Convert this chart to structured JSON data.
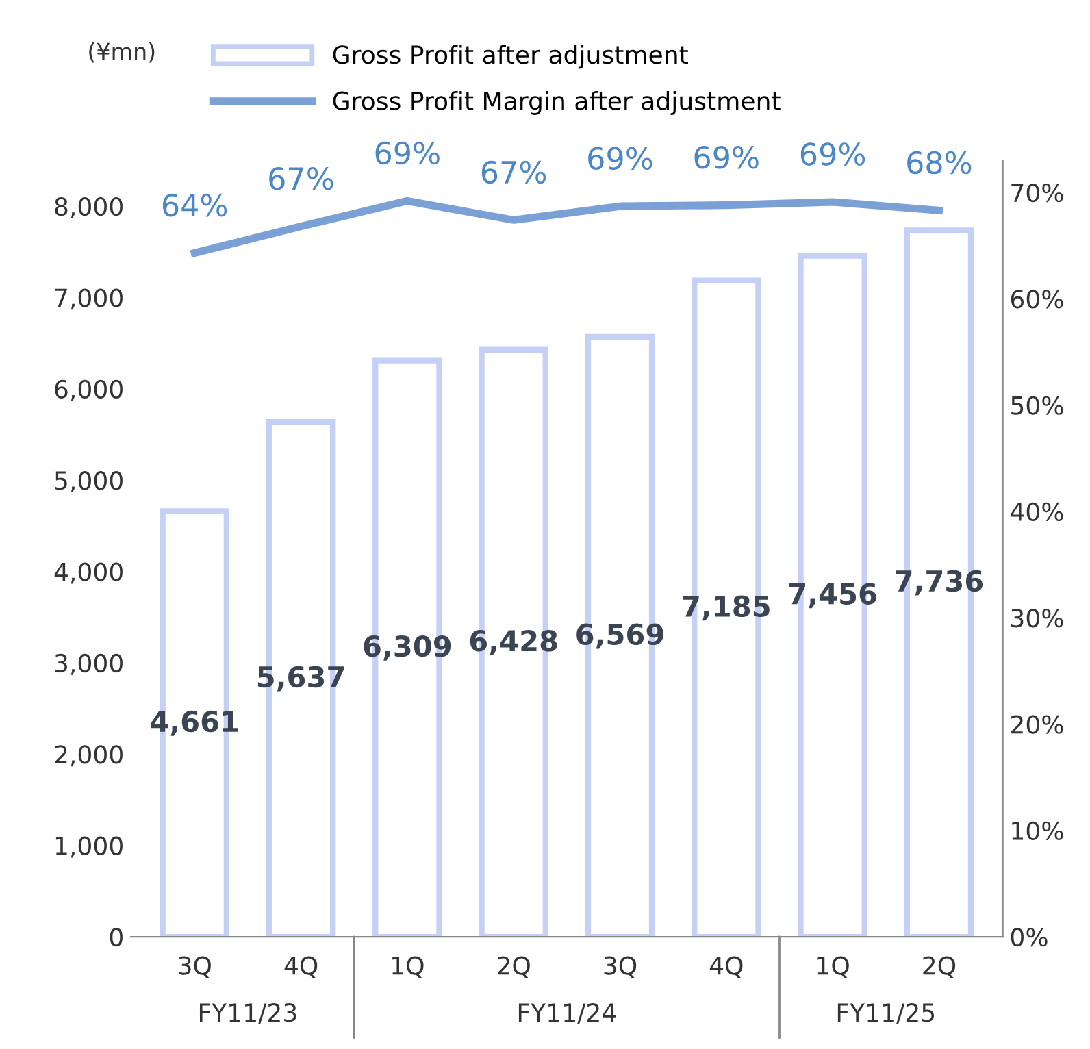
{
  "chart_data": {
    "type": "bar",
    "ylabel": "(¥mn)",
    "categories": [
      "3Q",
      "4Q",
      "1Q",
      "2Q",
      "3Q",
      "4Q",
      "1Q",
      "2Q"
    ],
    "series": [
      {
        "name": "Gross Profit after adjustment",
        "color": "#c5d0f7",
        "values": [
          4661,
          5637,
          6309,
          6428,
          6569,
          7185,
          7456,
          7736
        ],
        "value_labels": [
          "4,661",
          "5,637",
          "6,309",
          "6,428",
          "6,569",
          "7,185",
          "7,456",
          "7,736"
        ]
      },
      {
        "name": "Gross Profit Margin after adjustment",
        "type": "line",
        "axis": "y2",
        "color": "#7ba0d6",
        "values": [
          64.3,
          66.8,
          69.2,
          67.4,
          68.7,
          68.8,
          69.1,
          68.3
        ],
        "value_labels": [
          "64%",
          "67%",
          "69%",
          "67%",
          "69%",
          "69%",
          "69%",
          "68%"
        ]
      }
    ],
    "ylim": [
      0,
      8500
    ],
    "yticks": [
      {
        "value": 0,
        "label": "0"
      },
      {
        "value": 1000,
        "label": "1,000"
      },
      {
        "value": 2000,
        "label": "2,000"
      },
      {
        "value": 3000,
        "label": "3,000"
      },
      {
        "value": 4000,
        "label": "4,000"
      },
      {
        "value": 5000,
        "label": "5,000"
      },
      {
        "value": 6000,
        "label": "6,000"
      },
      {
        "value": 7000,
        "label": "7,000"
      },
      {
        "value": 8000,
        "label": "8,000"
      }
    ],
    "y2lim": [
      0,
      73
    ],
    "y2ticks": [
      {
        "value": 0,
        "label": "0%"
      },
      {
        "value": 10,
        "label": "10%"
      },
      {
        "value": 20,
        "label": "20%"
      },
      {
        "value": 30,
        "label": "30%"
      },
      {
        "value": 40,
        "label": "40%"
      },
      {
        "value": 50,
        "label": "50%"
      },
      {
        "value": 60,
        "label": "60%"
      },
      {
        "value": 70,
        "label": "70%"
      }
    ],
    "annotations": [
      "FY11/23",
      "FY11/24",
      "FY11/25"
    ],
    "legend": "top",
    "grid": false,
    "marker": "none",
    "line_style": "solid"
  }
}
